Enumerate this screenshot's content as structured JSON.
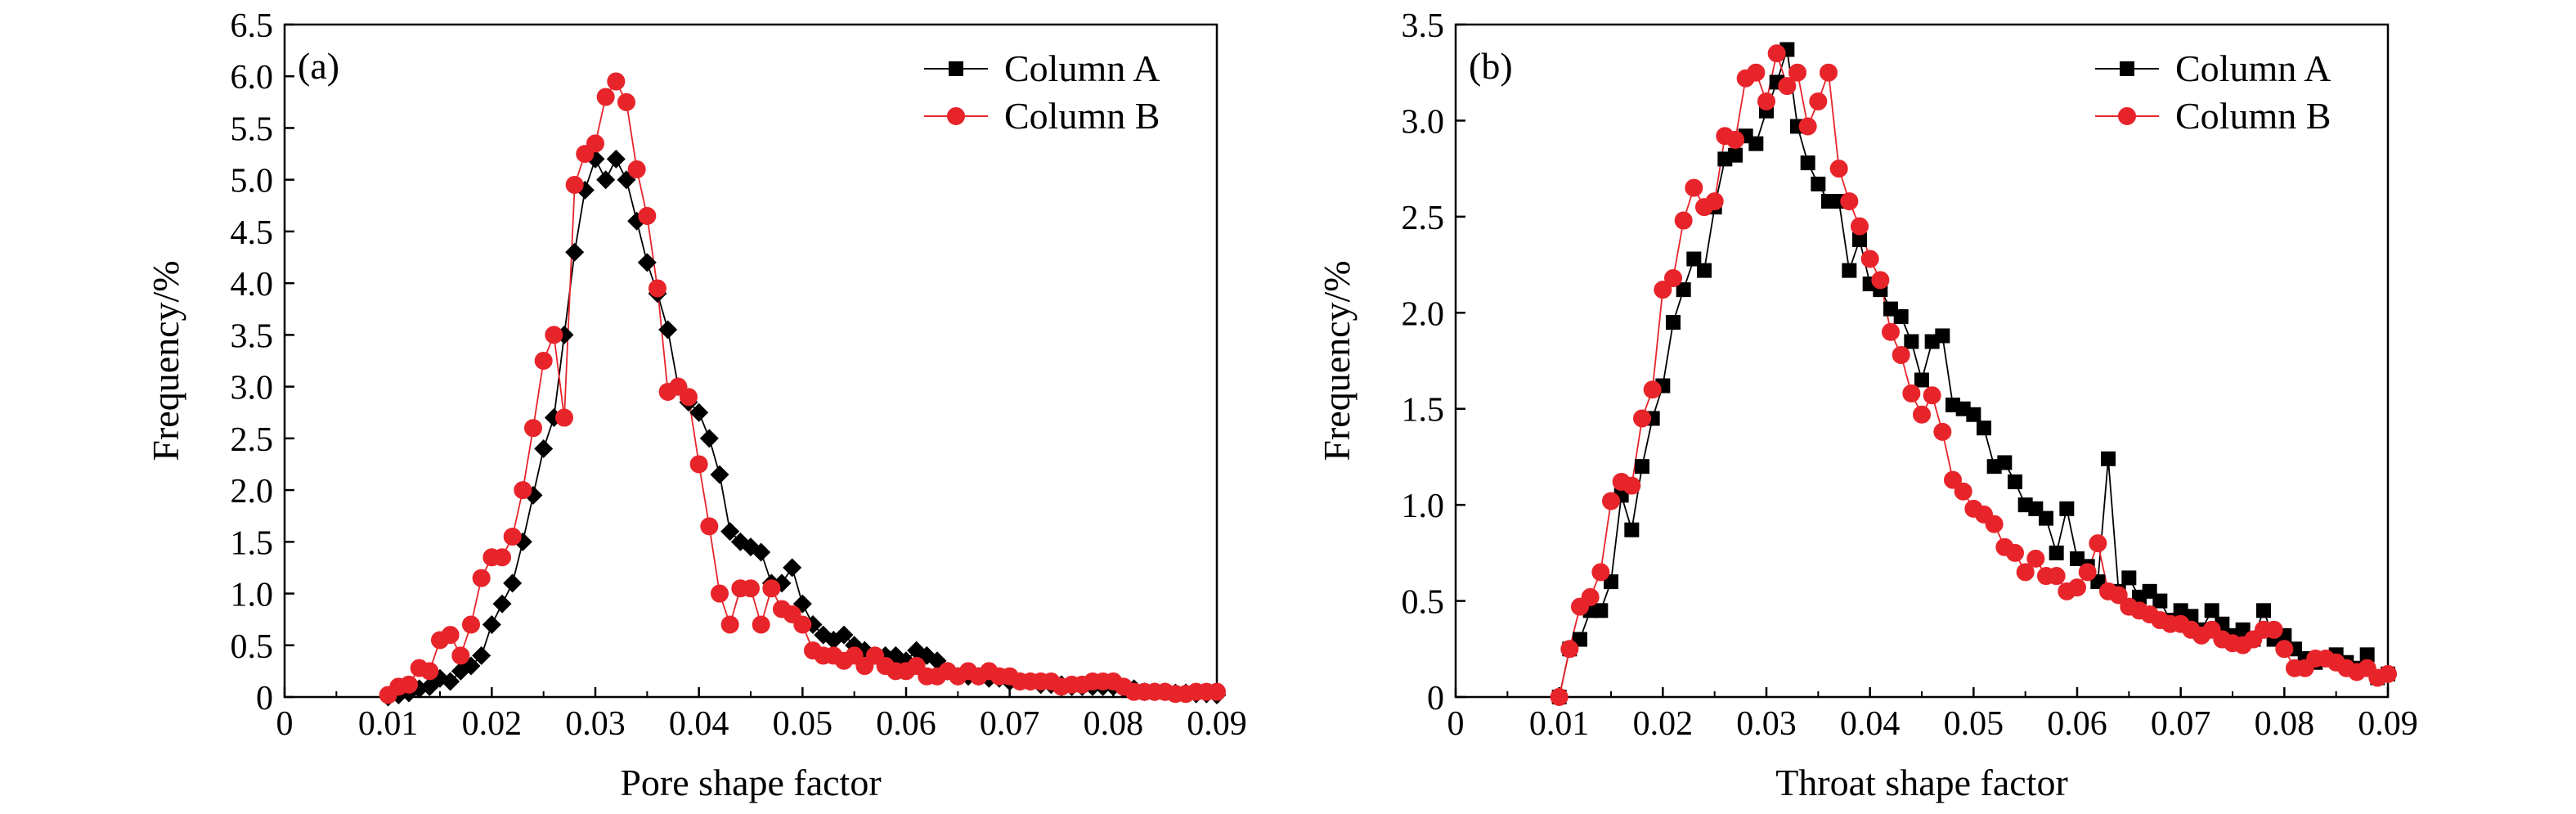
{
  "chart_data": [
    {
      "type": "line",
      "panel_label": "(a)",
      "xlabel": "Pore shape factor",
      "ylabel": "Frequency/%",
      "xlim": [
        0,
        0.09
      ],
      "ylim": [
        0,
        6.5
      ],
      "xticks": [
        0,
        0.01,
        0.02,
        0.03,
        0.04,
        0.05,
        0.06,
        0.07,
        0.08,
        0.09
      ],
      "xtick_labels": [
        "0",
        "0.01",
        "0.02",
        "0.03",
        "0.04",
        "0.05",
        "0.06",
        "0.07",
        "0.08",
        "0.09"
      ],
      "yticks": [
        0,
        0.5,
        1.0,
        1.5,
        2.0,
        2.5,
        3.0,
        3.5,
        4.0,
        4.5,
        5.0,
        5.5,
        6.0,
        6.5
      ],
      "ytick_labels": [
        "0",
        "0.5",
        "1.0",
        "1.5",
        "2.0",
        "2.5",
        "3.0",
        "3.5",
        "4.0",
        "4.5",
        "5.0",
        "5.5",
        "6.0",
        "6.5"
      ],
      "legend_position": "top-right",
      "grid": false,
      "series": [
        {
          "name": "Column A",
          "color": "#000000",
          "legend_marker": "square",
          "marker": "diamond",
          "x": [
            0.01,
            0.011,
            0.012,
            0.013,
            0.014,
            0.015,
            0.016,
            0.017,
            0.018,
            0.019,
            0.02,
            0.021,
            0.022,
            0.023,
            0.024,
            0.025,
            0.026,
            0.027,
            0.028,
            0.029,
            0.03,
            0.031,
            0.032,
            0.033,
            0.034,
            0.035,
            0.036,
            0.037,
            0.038,
            0.039,
            0.04,
            0.041,
            0.042,
            0.043,
            0.044,
            0.045,
            0.046,
            0.047,
            0.048,
            0.049,
            0.05,
            0.051,
            0.052,
            0.053,
            0.054,
            0.055,
            0.056,
            0.057,
            0.058,
            0.059,
            0.06,
            0.061,
            0.062,
            0.063,
            0.064,
            0.065,
            0.066,
            0.067,
            0.068,
            0.069,
            0.07,
            0.071,
            0.072,
            0.073,
            0.074,
            0.075,
            0.076,
            0.077,
            0.078,
            0.079,
            0.08,
            0.081,
            0.082,
            0.083,
            0.084,
            0.085,
            0.086,
            0.087,
            0.088,
            0.089,
            0.09
          ],
          "values": [
            0.0,
            0.02,
            0.04,
            0.08,
            0.1,
            0.18,
            0.15,
            0.25,
            0.3,
            0.4,
            0.7,
            0.9,
            1.1,
            1.5,
            1.95,
            2.4,
            2.7,
            3.5,
            4.3,
            4.9,
            5.2,
            5.0,
            5.2,
            5.0,
            4.6,
            4.2,
            3.9,
            3.55,
            3.0,
            2.85,
            2.75,
            2.5,
            2.15,
            1.6,
            1.5,
            1.45,
            1.4,
            1.1,
            1.1,
            1.25,
            0.9,
            0.7,
            0.6,
            0.55,
            0.6,
            0.5,
            0.45,
            0.4,
            0.4,
            0.4,
            0.35,
            0.45,
            0.4,
            0.35,
            0.25,
            0.2,
            0.2,
            0.2,
            0.18,
            0.18,
            0.15,
            0.15,
            0.15,
            0.12,
            0.12,
            0.12,
            0.1,
            0.1,
            0.1,
            0.1,
            0.1,
            0.08,
            0.08,
            0.05,
            0.05,
            0.05,
            0.04,
            0.04,
            0.03,
            0.03,
            0.02
          ]
        },
        {
          "name": "Column B",
          "color": "#e8242b",
          "marker": "circle",
          "x": [
            0.01,
            0.011,
            0.012,
            0.013,
            0.014,
            0.015,
            0.016,
            0.017,
            0.018,
            0.019,
            0.02,
            0.021,
            0.022,
            0.023,
            0.024,
            0.025,
            0.026,
            0.027,
            0.028,
            0.029,
            0.03,
            0.031,
            0.032,
            0.033,
            0.034,
            0.035,
            0.036,
            0.037,
            0.038,
            0.039,
            0.04,
            0.041,
            0.042,
            0.043,
            0.044,
            0.045,
            0.046,
            0.047,
            0.048,
            0.049,
            0.05,
            0.051,
            0.052,
            0.053,
            0.054,
            0.055,
            0.056,
            0.057,
            0.058,
            0.059,
            0.06,
            0.061,
            0.062,
            0.063,
            0.064,
            0.065,
            0.066,
            0.067,
            0.068,
            0.069,
            0.07,
            0.071,
            0.072,
            0.073,
            0.074,
            0.075,
            0.076,
            0.077,
            0.078,
            0.079,
            0.08,
            0.081,
            0.082,
            0.083,
            0.084,
            0.085,
            0.086,
            0.087,
            0.088,
            0.089,
            0.09
          ],
          "values": [
            0.02,
            0.1,
            0.12,
            0.28,
            0.25,
            0.55,
            0.6,
            0.4,
            0.7,
            1.15,
            1.35,
            1.35,
            1.55,
            2.0,
            2.6,
            3.25,
            3.5,
            2.7,
            4.95,
            5.25,
            5.35,
            5.8,
            5.95,
            5.75,
            5.1,
            4.65,
            3.95,
            2.95,
            3.0,
            2.9,
            2.25,
            1.65,
            1.0,
            0.7,
            1.05,
            1.05,
            0.7,
            1.05,
            0.85,
            0.8,
            0.7,
            0.45,
            0.4,
            0.4,
            0.35,
            0.4,
            0.3,
            0.4,
            0.3,
            0.25,
            0.25,
            0.3,
            0.2,
            0.2,
            0.25,
            0.2,
            0.25,
            0.2,
            0.25,
            0.2,
            0.2,
            0.15,
            0.15,
            0.15,
            0.15,
            0.1,
            0.12,
            0.12,
            0.15,
            0.15,
            0.15,
            0.1,
            0.05,
            0.05,
            0.05,
            0.05,
            0.03,
            0.03,
            0.05,
            0.05,
            0.05
          ]
        }
      ]
    },
    {
      "type": "line",
      "panel_label": "(b)",
      "xlabel": "Throat shape factor",
      "ylabel": "Frequency/%",
      "xlim": [
        0,
        0.09
      ],
      "ylim": [
        0,
        3.5
      ],
      "xticks": [
        0,
        0.01,
        0.02,
        0.03,
        0.04,
        0.05,
        0.06,
        0.07,
        0.08,
        0.09
      ],
      "xtick_labels": [
        "0",
        "0.01",
        "0.02",
        "0.03",
        "0.04",
        "0.05",
        "0.06",
        "0.07",
        "0.08",
        "0.09"
      ],
      "yticks": [
        0,
        0.5,
        1.0,
        1.5,
        2.0,
        2.5,
        3.0,
        3.5
      ],
      "ytick_labels": [
        "0",
        "0.5",
        "1.0",
        "1.5",
        "2.0",
        "2.5",
        "3.0",
        "3.5"
      ],
      "legend_position": "top-right",
      "grid": false,
      "series": [
        {
          "name": "Column A",
          "color": "#000000",
          "legend_marker": "square",
          "marker": "square",
          "x": [
            0.01,
            0.011,
            0.012,
            0.013,
            0.014,
            0.015,
            0.016,
            0.017,
            0.018,
            0.019,
            0.02,
            0.021,
            0.022,
            0.023,
            0.024,
            0.025,
            0.026,
            0.027,
            0.028,
            0.029,
            0.03,
            0.031,
            0.032,
            0.033,
            0.034,
            0.035,
            0.036,
            0.037,
            0.038,
            0.039,
            0.04,
            0.041,
            0.042,
            0.043,
            0.044,
            0.045,
            0.046,
            0.047,
            0.048,
            0.049,
            0.05,
            0.051,
            0.052,
            0.053,
            0.054,
            0.055,
            0.056,
            0.057,
            0.058,
            0.059,
            0.06,
            0.061,
            0.062,
            0.063,
            0.064,
            0.065,
            0.066,
            0.067,
            0.068,
            0.069,
            0.07,
            0.071,
            0.072,
            0.073,
            0.074,
            0.075,
            0.076,
            0.077,
            0.078,
            0.079,
            0.08,
            0.081,
            0.082,
            0.083,
            0.084,
            0.085,
            0.086,
            0.087,
            0.088,
            0.089,
            0.09
          ],
          "values": [
            0.0,
            0.25,
            0.3,
            0.45,
            0.45,
            0.6,
            1.05,
            0.87,
            1.2,
            1.45,
            1.62,
            1.95,
            2.12,
            2.28,
            2.22,
            2.55,
            2.8,
            2.82,
            2.92,
            2.88,
            3.05,
            3.2,
            3.37,
            2.97,
            2.78,
            2.67,
            2.58,
            2.58,
            2.22,
            2.38,
            2.15,
            2.12,
            2.02,
            1.98,
            1.85,
            1.65,
            1.85,
            1.88,
            1.52,
            1.5,
            1.47,
            1.4,
            1.2,
            1.22,
            1.12,
            1.0,
            0.98,
            0.93,
            0.75,
            0.98,
            0.72,
            0.68,
            0.6,
            1.24,
            0.55,
            0.62,
            0.52,
            0.55,
            0.5,
            0.4,
            0.45,
            0.42,
            0.35,
            0.45,
            0.38,
            0.32,
            0.35,
            0.3,
            0.45,
            0.3,
            0.32,
            0.25,
            0.2,
            0.18,
            0.2,
            0.22,
            0.18,
            0.15,
            0.22,
            0.1,
            0.12
          ]
        },
        {
          "name": "Column B",
          "color": "#e8242b",
          "marker": "circle",
          "x": [
            0.01,
            0.011,
            0.012,
            0.013,
            0.014,
            0.015,
            0.016,
            0.017,
            0.018,
            0.019,
            0.02,
            0.021,
            0.022,
            0.023,
            0.024,
            0.025,
            0.026,
            0.027,
            0.028,
            0.029,
            0.03,
            0.031,
            0.032,
            0.033,
            0.034,
            0.035,
            0.036,
            0.037,
            0.038,
            0.039,
            0.04,
            0.041,
            0.042,
            0.043,
            0.044,
            0.045,
            0.046,
            0.047,
            0.048,
            0.049,
            0.05,
            0.051,
            0.052,
            0.053,
            0.054,
            0.055,
            0.056,
            0.057,
            0.058,
            0.059,
            0.06,
            0.061,
            0.062,
            0.063,
            0.064,
            0.065,
            0.066,
            0.067,
            0.068,
            0.069,
            0.07,
            0.071,
            0.072,
            0.073,
            0.074,
            0.075,
            0.076,
            0.077,
            0.078,
            0.079,
            0.08,
            0.081,
            0.082,
            0.083,
            0.084,
            0.085,
            0.086,
            0.087,
            0.088,
            0.089,
            0.09
          ],
          "values": [
            0.0,
            0.25,
            0.47,
            0.52,
            0.65,
            1.02,
            1.12,
            1.1,
            1.45,
            1.6,
            2.12,
            2.18,
            2.48,
            2.65,
            2.55,
            2.58,
            2.92,
            2.9,
            3.22,
            3.25,
            3.1,
            3.35,
            3.18,
            3.25,
            2.97,
            3.1,
            3.25,
            2.75,
            2.58,
            2.45,
            2.28,
            2.17,
            1.9,
            1.78,
            1.58,
            1.47,
            1.57,
            1.38,
            1.13,
            1.07,
            0.98,
            0.95,
            0.9,
            0.78,
            0.75,
            0.65,
            0.72,
            0.63,
            0.63,
            0.55,
            0.57,
            0.65,
            0.8,
            0.55,
            0.53,
            0.47,
            0.45,
            0.43,
            0.4,
            0.38,
            0.38,
            0.35,
            0.32,
            0.35,
            0.3,
            0.28,
            0.27,
            0.3,
            0.35,
            0.35,
            0.25,
            0.15,
            0.15,
            0.2,
            0.2,
            0.18,
            0.15,
            0.13,
            0.15,
            0.1,
            0.12
          ]
        }
      ]
    }
  ]
}
